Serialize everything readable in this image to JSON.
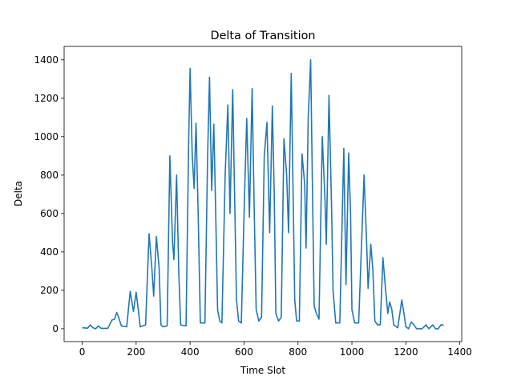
{
  "chart_data": {
    "type": "line",
    "title": "Delta of Transition",
    "x_label": "Time Slot",
    "y_label": "Delta",
    "x": [
      0,
      20,
      30,
      40,
      50,
      60,
      70,
      95,
      110,
      120,
      128,
      135,
      145,
      165,
      178,
      190,
      200,
      208,
      215,
      235,
      248,
      258,
      265,
      275,
      285,
      292,
      300,
      315,
      325,
      335,
      340,
      350,
      358,
      365,
      385,
      395,
      400,
      408,
      415,
      422,
      430,
      438,
      455,
      465,
      472,
      480,
      488,
      495,
      502,
      510,
      518,
      530,
      540,
      548,
      558,
      565,
      572,
      580,
      590,
      600,
      610,
      620,
      630,
      638,
      645,
      655,
      665,
      675,
      685,
      695,
      705,
      712,
      718,
      728,
      738,
      748,
      758,
      765,
      775,
      782,
      788,
      795,
      805,
      815,
      825,
      830,
      838,
      847,
      855,
      860,
      868,
      878,
      890,
      900,
      905,
      915,
      925,
      930,
      940,
      955,
      970,
      978,
      988,
      995,
      1000,
      1010,
      1025,
      1045,
      1055,
      1060,
      1070,
      1078,
      1085,
      1095,
      1105,
      1115,
      1125,
      1133,
      1140,
      1148,
      1155,
      1170,
      1185,
      1195,
      1200,
      1210,
      1220,
      1230,
      1240,
      1260,
      1275,
      1285,
      1300,
      1310,
      1320,
      1330,
      1340
    ],
    "series": [
      {
        "name": "Delta",
        "color": "#1f77b4",
        "values": [
          5,
          3,
          20,
          5,
          0,
          15,
          2,
          2,
          45,
          50,
          85,
          60,
          15,
          10,
          195,
          90,
          190,
          100,
          10,
          20,
          495,
          320,
          170,
          480,
          320,
          20,
          10,
          15,
          900,
          450,
          360,
          800,
          300,
          20,
          15,
          1000,
          1355,
          900,
          730,
          1070,
          600,
          30,
          30,
          900,
          1310,
          720,
          1065,
          600,
          100,
          40,
          30,
          800,
          1165,
          600,
          1245,
          700,
          150,
          40,
          30,
          600,
          1095,
          580,
          1250,
          600,
          100,
          40,
          60,
          900,
          1075,
          500,
          1160,
          700,
          80,
          40,
          60,
          990,
          800,
          500,
          1330,
          700,
          150,
          40,
          40,
          910,
          750,
          420,
          1100,
          1400,
          600,
          120,
          80,
          50,
          1000,
          680,
          440,
          1215,
          600,
          200,
          30,
          30,
          940,
          230,
          915,
          600,
          100,
          30,
          30,
          800,
          430,
          210,
          440,
          300,
          40,
          20,
          20,
          370,
          200,
          80,
          140,
          100,
          20,
          5,
          150,
          60,
          10,
          0,
          35,
          20,
          0,
          0,
          20,
          0,
          20,
          0,
          0,
          20,
          20
        ]
      }
    ],
    "xlim": [
      -67,
      1407
    ],
    "ylim": [
      -67,
      1470
    ],
    "xticks": [
      0,
      200,
      400,
      600,
      800,
      1000,
      1200,
      1400
    ],
    "yticks": [
      0,
      200,
      400,
      600,
      800,
      1000,
      1200,
      1400
    ]
  }
}
